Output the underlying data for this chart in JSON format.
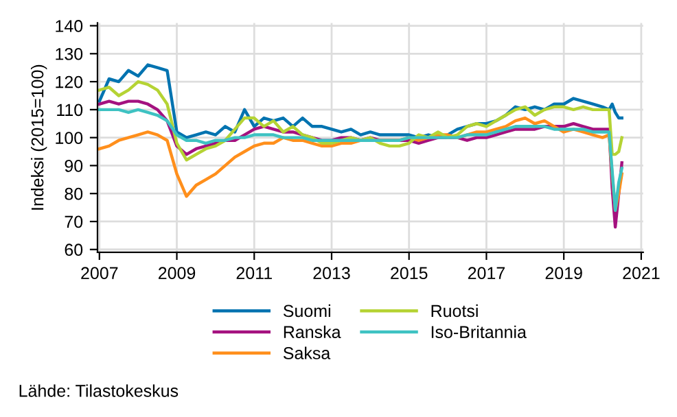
{
  "chart_data": {
    "type": "line",
    "ylabel": "Indeksi (2015=100)",
    "x": [
      2007,
      2007.25,
      2007.5,
      2007.75,
      2008,
      2008.25,
      2008.5,
      2008.75,
      2009,
      2009.25,
      2009.5,
      2009.75,
      2010,
      2010.25,
      2010.5,
      2010.75,
      2011,
      2011.25,
      2011.5,
      2011.75,
      2012,
      2012.25,
      2012.5,
      2012.75,
      2013,
      2013.25,
      2013.5,
      2013.75,
      2014,
      2014.25,
      2014.5,
      2014.75,
      2015,
      2015.25,
      2015.5,
      2015.75,
      2016,
      2016.25,
      2016.5,
      2016.75,
      2017,
      2017.25,
      2017.5,
      2017.75,
      2018,
      2018.25,
      2018.5,
      2018.75,
      2019,
      2019.25,
      2019.5,
      2019.75,
      2020,
      2020.17,
      2020.25,
      2020.33,
      2020.42,
      2020.5
    ],
    "series": [
      {
        "name": "Suomi",
        "color": "#0073b0",
        "values": [
          113,
          121,
          120,
          124,
          122,
          126,
          125,
          124,
          102,
          100,
          101,
          102,
          101,
          104,
          102,
          110,
          104,
          107,
          106,
          107,
          104,
          107,
          104,
          104,
          103,
          102,
          103,
          101,
          102,
          101,
          101,
          101,
          101,
          100,
          101,
          100,
          101,
          103,
          104,
          105,
          105,
          106,
          108,
          111,
          110,
          111,
          110,
          112,
          112,
          114,
          113,
          112,
          111,
          110,
          112,
          109,
          107,
          107
        ]
      },
      {
        "name": "Ranska",
        "color": "#a4117f",
        "values": [
          112,
          113,
          112,
          113,
          113,
          112,
          110,
          106,
          97,
          94,
          96,
          97,
          98,
          99,
          99,
          101,
          103,
          104,
          103,
          102,
          102,
          101,
          100,
          99,
          99,
          100,
          100,
          99,
          100,
          99,
          99,
          99,
          99,
          98,
          99,
          100,
          100,
          100,
          99,
          100,
          100,
          101,
          102,
          103,
          103,
          103,
          104,
          104,
          104,
          105,
          104,
          103,
          103,
          103,
          82,
          68,
          80,
          91
        ]
      },
      {
        "name": "Saksa",
        "color": "#ff8f1c",
        "values": [
          96,
          97,
          99,
          100,
          101,
          102,
          101,
          99,
          87,
          79,
          83,
          85,
          87,
          90,
          93,
          95,
          97,
          98,
          98,
          100,
          99,
          99,
          98,
          97,
          97,
          98,
          98,
          99,
          99,
          99,
          99,
          99,
          100,
          99,
          100,
          101,
          101,
          100,
          101,
          102,
          102,
          103,
          104,
          106,
          107,
          105,
          106,
          104,
          102,
          103,
          102,
          101,
          100,
          101,
          87,
          74,
          80,
          87
        ]
      },
      {
        "name": "Ruotsi",
        "color": "#b5d334",
        "values": [
          117,
          118,
          115,
          117,
          120,
          119,
          117,
          112,
          98,
          92,
          94,
          96,
          97,
          99,
          103,
          107,
          107,
          104,
          106,
          102,
          104,
          101,
          100,
          98,
          98,
          99,
          100,
          99,
          100,
          98,
          97,
          97,
          98,
          101,
          100,
          102,
          100,
          101,
          104,
          105,
          104,
          106,
          108,
          110,
          111,
          108,
          110,
          111,
          111,
          110,
          111,
          110,
          110,
          110,
          94,
          94,
          95,
          100
        ]
      },
      {
        "name": "Iso-Britannia",
        "color": "#3ec2c2",
        "values": [
          110,
          110,
          110,
          109,
          110,
          109,
          108,
          106,
          101,
          99,
          99,
          98,
          99,
          99,
          100,
          100,
          101,
          101,
          101,
          100,
          100,
          100,
          99,
          99,
          99,
          99,
          99,
          99,
          99,
          99,
          99,
          99,
          100,
          100,
          100,
          100,
          100,
          100,
          101,
          101,
          101,
          102,
          103,
          104,
          104,
          104,
          104,
          103,
          103,
          103,
          103,
          102,
          102,
          102,
          88,
          74,
          84,
          89
        ]
      }
    ],
    "xlim": [
      2006.95,
      2021.05
    ],
    "xticks": [
      2007,
      2009,
      2011,
      2013,
      2015,
      2017,
      2019,
      2021
    ],
    "ylim": [
      59,
      141
    ],
    "yticks": [
      60,
      70,
      80,
      90,
      100,
      110,
      120,
      130,
      140
    ],
    "grid": true,
    "legend": "bottom",
    "line_style": "solid",
    "marker": "none",
    "annotations": [
      "Lähde: Tilastokeskus"
    ]
  }
}
